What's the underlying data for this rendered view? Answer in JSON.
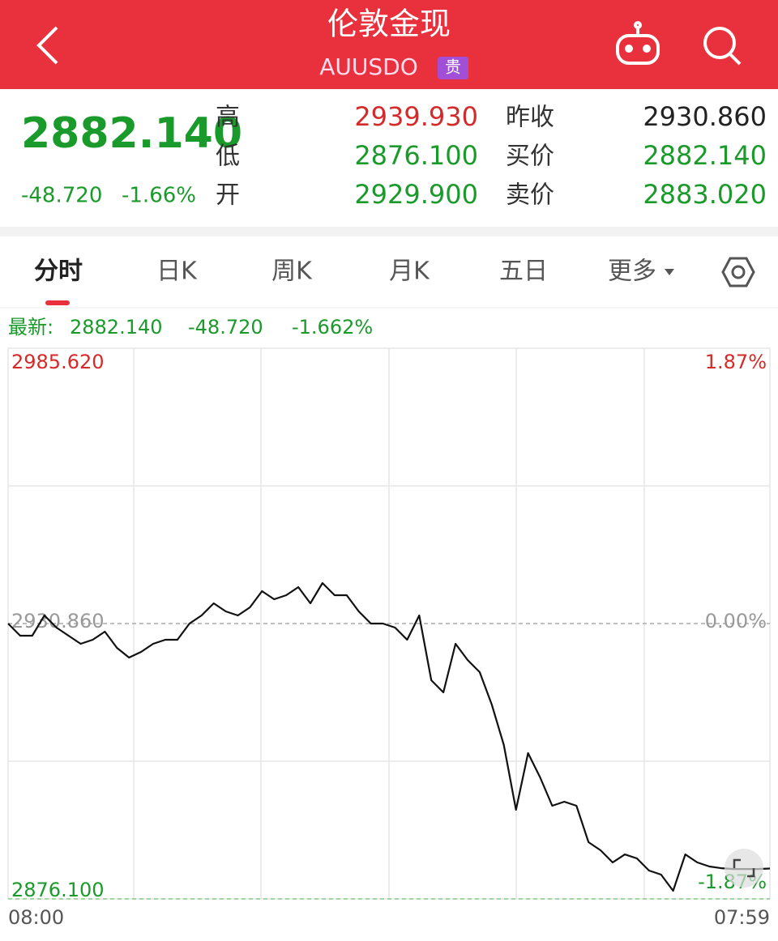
{
  "header": {
    "title": "伦敦金现",
    "subtitle": "AUUSDO",
    "badge": "贵"
  },
  "quote": {
    "price": "2882.140",
    "change": "-48.720",
    "change_pct": "-1.66%",
    "rows": [
      [
        "高",
        "2939.930",
        "昨收",
        "2930.860"
      ],
      [
        "低",
        "2876.100",
        "买价",
        "2882.140"
      ],
      [
        "开",
        "2929.900",
        "卖价",
        "2883.020"
      ]
    ]
  },
  "tabs": [
    "分时",
    "日K",
    "周K",
    "月K",
    "五日",
    "更多"
  ],
  "latest": {
    "label": "最新:",
    "price": "2882.140",
    "change": "-48.720",
    "change_pct": "-1.662%"
  },
  "chart_data": {
    "type": "line",
    "color": "#111111",
    "x_labels": [
      "08:00",
      "07:59"
    ],
    "values": [
      2930.86,
      2928.44,
      2928.44,
      2932.47,
      2930.05,
      2928.44,
      2926.83,
      2927.64,
      2929.25,
      2926.03,
      2924.1,
      2925.22,
      2926.83,
      2927.64,
      2927.64,
      2930.86,
      2932.47,
      2934.89,
      2933.28,
      2932.47,
      2934.08,
      2937.3,
      2935.69,
      2936.5,
      2938.11,
      2934.89,
      2938.91,
      2936.5,
      2936.5,
      2933.28,
      2930.86,
      2930.86,
      2930.05,
      2927.64,
      2932.47,
      2919.59,
      2917.17,
      2926.83,
      2923.61,
      2921.2,
      2914.75,
      2906.7,
      2893.82,
      2905.09,
      2900.26,
      2894.62,
      2895.42,
      2894.62,
      2887.37,
      2885.76,
      2883.35,
      2884.95,
      2884.15,
      2881.74,
      2880.93,
      2877.71,
      2884.95,
      2883.35,
      2882.54,
      2882.21,
      2882.05,
      2882.05,
      2882.05,
      2882.14
    ],
    "ylim": [
      2876.1,
      2985.62
    ],
    "yticks": [
      {
        "value": 2985.62,
        "label": "2985.620"
      },
      {
        "value": 2930.86,
        "label": "2930.860"
      },
      {
        "value": 2876.1,
        "label": "2876.100"
      }
    ],
    "y2lim": [
      -1.87,
      1.87
    ],
    "y2ticks": [
      {
        "value": 1.87,
        "label": "1.87%"
      },
      {
        "value": 0,
        "label": "0.00%"
      },
      {
        "value": -1.87,
        "label": "-1.87%"
      }
    ]
  }
}
